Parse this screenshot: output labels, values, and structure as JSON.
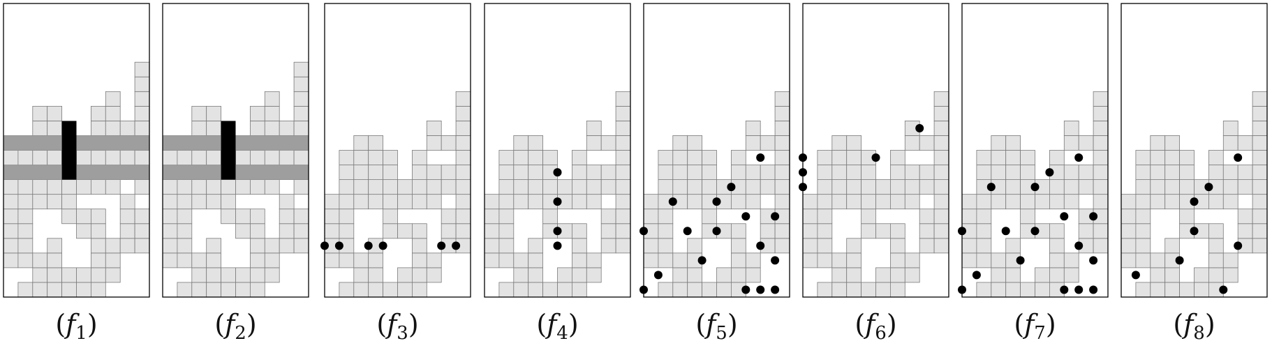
{
  "figure": {
    "grid": {
      "cols": 10,
      "rows": 20
    },
    "colors": {
      "cell": "#e3e3e3",
      "cell_line": "#7a7a7a",
      "frame": "#000000",
      "band": "#9e9e9e",
      "column_block": "#000000",
      "dot": "#000000"
    },
    "panels": [
      {
        "caption": {
          "open": "(",
          "letter": "f",
          "sub": "1",
          "close": ")"
        },
        "heights": [
          11,
          11,
          13,
          13,
          11,
          11,
          13,
          14,
          12,
          16
        ],
        "holes": [
          [
            0,
            0
          ],
          [
            0,
            1
          ],
          [
            1,
            1
          ],
          [
            2,
            3
          ],
          [
            2,
            4
          ],
          [
            2,
            5
          ],
          [
            3,
            4
          ],
          [
            3,
            5
          ],
          [
            4,
            2
          ],
          [
            4,
            3
          ],
          [
            4,
            4
          ],
          [
            5,
            2
          ],
          [
            5,
            3
          ],
          [
            5,
            6
          ],
          [
            6,
            6
          ],
          [
            7,
            0
          ],
          [
            7,
            4
          ],
          [
            7,
            5
          ],
          [
            7,
            6
          ],
          [
            7,
            10
          ],
          [
            8,
            0
          ],
          [
            8,
            1
          ],
          [
            8,
            2
          ],
          [
            8,
            7
          ],
          [
            8,
            10
          ],
          [
            9,
            0
          ],
          [
            9,
            1
          ],
          [
            9,
            2
          ],
          [
            9,
            6
          ],
          [
            9,
            8
          ]
        ],
        "bands": [
          [
            8,
            8
          ],
          [
            10,
            10
          ]
        ],
        "column_block": {
          "col": 4,
          "row_from": 8,
          "row_to": 11
        },
        "dots": []
      },
      {
        "caption": {
          "open": "(",
          "letter": "f",
          "sub": "2",
          "close": ")"
        },
        "heights": [
          11,
          11,
          13,
          13,
          11,
          11,
          13,
          14,
          12,
          16
        ],
        "holes": [
          [
            0,
            0
          ],
          [
            0,
            1
          ],
          [
            1,
            1
          ],
          [
            2,
            3
          ],
          [
            2,
            4
          ],
          [
            2,
            5
          ],
          [
            3,
            4
          ],
          [
            3,
            5
          ],
          [
            4,
            2
          ],
          [
            4,
            3
          ],
          [
            4,
            4
          ],
          [
            5,
            2
          ],
          [
            5,
            3
          ],
          [
            5,
            6
          ],
          [
            6,
            6
          ],
          [
            7,
            0
          ],
          [
            7,
            4
          ],
          [
            7,
            5
          ],
          [
            7,
            6
          ],
          [
            7,
            10
          ],
          [
            8,
            0
          ],
          [
            8,
            1
          ],
          [
            8,
            2
          ],
          [
            8,
            7
          ],
          [
            8,
            10
          ],
          [
            9,
            0
          ],
          [
            9,
            1
          ],
          [
            9,
            2
          ],
          [
            9,
            6
          ],
          [
            9,
            8
          ]
        ],
        "bands": [
          [
            8,
            8
          ],
          [
            10,
            10
          ]
        ],
        "column_block": {
          "col": 4,
          "row_from": 8,
          "row_to": 11
        },
        "dots": []
      },
      {
        "caption": {
          "open": "(",
          "letter": "f",
          "sub": "3",
          "close": ")"
        },
        "heights": [
          7,
          10,
          11,
          11,
          10,
          8,
          10,
          12,
          11,
          14
        ],
        "holes": [
          [
            0,
            0
          ],
          [
            0,
            1
          ],
          [
            1,
            1
          ],
          [
            2,
            3
          ],
          [
            2,
            4
          ],
          [
            2,
            5
          ],
          [
            3,
            4
          ],
          [
            3,
            5
          ],
          [
            4,
            1
          ],
          [
            4,
            2
          ],
          [
            4,
            3
          ],
          [
            5,
            2
          ],
          [
            5,
            3
          ],
          [
            5,
            5
          ],
          [
            6,
            5
          ],
          [
            7,
            0
          ],
          [
            7,
            3
          ],
          [
            7,
            4
          ],
          [
            7,
            5
          ],
          [
            7,
            9
          ],
          [
            8,
            0
          ],
          [
            8,
            1
          ],
          [
            8,
            2
          ],
          [
            8,
            6
          ],
          [
            8,
            9
          ],
          [
            9,
            0
          ],
          [
            9,
            1
          ],
          [
            9,
            2
          ]
        ],
        "bands": [],
        "column_block": null,
        "dots": [
          [
            0,
            3.5
          ],
          [
            1,
            3.5
          ],
          [
            3,
            3.5
          ],
          [
            4,
            3.5
          ],
          [
            8,
            3.5
          ],
          [
            9,
            3.5
          ]
        ]
      },
      {
        "caption": {
          "open": "(",
          "letter": "f",
          "sub": "4",
          "close": ")"
        },
        "heights": [
          7,
          10,
          11,
          11,
          10,
          8,
          10,
          12,
          11,
          14
        ],
        "holes": [
          [
            0,
            0
          ],
          [
            0,
            1
          ],
          [
            1,
            1
          ],
          [
            2,
            3
          ],
          [
            2,
            4
          ],
          [
            2,
            5
          ],
          [
            3,
            4
          ],
          [
            3,
            5
          ],
          [
            4,
            1
          ],
          [
            4,
            2
          ],
          [
            4,
            3
          ],
          [
            5,
            2
          ],
          [
            5,
            3
          ],
          [
            5,
            5
          ],
          [
            6,
            5
          ],
          [
            7,
            0
          ],
          [
            7,
            3
          ],
          [
            7,
            4
          ],
          [
            7,
            5
          ],
          [
            7,
            9
          ],
          [
            8,
            0
          ],
          [
            8,
            1
          ],
          [
            8,
            2
          ],
          [
            8,
            6
          ],
          [
            8,
            9
          ],
          [
            9,
            0
          ],
          [
            9,
            1
          ],
          [
            9,
            2
          ]
        ],
        "bands": [],
        "column_block": null,
        "dots": [
          [
            5,
            3.5
          ],
          [
            5,
            4.5
          ],
          [
            5,
            6.5
          ],
          [
            5,
            8.5
          ]
        ]
      },
      {
        "caption": {
          "open": "(",
          "letter": "f",
          "sub": "5",
          "close": ")"
        },
        "heights": [
          7,
          10,
          11,
          11,
          10,
          8,
          10,
          12,
          11,
          14
        ],
        "holes": [
          [
            0,
            0
          ],
          [
            0,
            1
          ],
          [
            1,
            1
          ],
          [
            2,
            3
          ],
          [
            2,
            4
          ],
          [
            2,
            5
          ],
          [
            3,
            4
          ],
          [
            3,
            5
          ],
          [
            4,
            1
          ],
          [
            4,
            2
          ],
          [
            4,
            3
          ],
          [
            5,
            2
          ],
          [
            5,
            3
          ],
          [
            5,
            5
          ],
          [
            6,
            5
          ],
          [
            7,
            0
          ],
          [
            7,
            3
          ],
          [
            7,
            4
          ],
          [
            7,
            5
          ],
          [
            7,
            9
          ],
          [
            8,
            0
          ],
          [
            8,
            1
          ],
          [
            8,
            2
          ],
          [
            8,
            6
          ],
          [
            8,
            9
          ],
          [
            9,
            0
          ],
          [
            9,
            1
          ],
          [
            9,
            2
          ]
        ],
        "bands": [],
        "column_block": null,
        "dots": [
          [
            0,
            0.5
          ],
          [
            0,
            4.5
          ],
          [
            1,
            1.5
          ],
          [
            2,
            6.5
          ],
          [
            3,
            4.5
          ],
          [
            4,
            2.5
          ],
          [
            5,
            4.5
          ],
          [
            5,
            6.5
          ],
          [
            6,
            7.5
          ],
          [
            7,
            0.5
          ],
          [
            7,
            5.5
          ],
          [
            8,
            0.5
          ],
          [
            8,
            3.5
          ],
          [
            8,
            9.5
          ],
          [
            9,
            0.5
          ],
          [
            9,
            2.5
          ],
          [
            9,
            5.5
          ]
        ]
      },
      {
        "caption": {
          "open": "(",
          "letter": "f",
          "sub": "6",
          "close": ")"
        },
        "heights": [
          7,
          10,
          11,
          11,
          10,
          8,
          10,
          12,
          11,
          14
        ],
        "holes": [
          [
            0,
            0
          ],
          [
            0,
            1
          ],
          [
            1,
            1
          ],
          [
            2,
            3
          ],
          [
            2,
            4
          ],
          [
            2,
            5
          ],
          [
            3,
            4
          ],
          [
            3,
            5
          ],
          [
            4,
            1
          ],
          [
            4,
            2
          ],
          [
            4,
            3
          ],
          [
            5,
            2
          ],
          [
            5,
            3
          ],
          [
            5,
            5
          ],
          [
            6,
            5
          ],
          [
            7,
            0
          ],
          [
            7,
            3
          ],
          [
            7,
            4
          ],
          [
            7,
            5
          ],
          [
            7,
            9
          ],
          [
            8,
            0
          ],
          [
            8,
            1
          ],
          [
            8,
            2
          ],
          [
            8,
            6
          ],
          [
            8,
            9
          ],
          [
            9,
            0
          ],
          [
            9,
            1
          ],
          [
            9,
            2
          ]
        ],
        "bands": [],
        "column_block": null,
        "dots": [
          [
            0,
            7.5
          ],
          [
            0,
            8.5
          ],
          [
            0,
            9.5
          ],
          [
            5,
            9.5
          ],
          [
            8,
            11.5
          ]
        ]
      },
      {
        "caption": {
          "open": "(",
          "letter": "f",
          "sub": "7",
          "close": ")"
        },
        "heights": [
          7,
          10,
          11,
          11,
          10,
          8,
          10,
          12,
          11,
          14
        ],
        "holes": [
          [
            0,
            0
          ],
          [
            0,
            1
          ],
          [
            1,
            1
          ],
          [
            2,
            3
          ],
          [
            2,
            4
          ],
          [
            2,
            5
          ],
          [
            3,
            4
          ],
          [
            3,
            5
          ],
          [
            4,
            1
          ],
          [
            4,
            2
          ],
          [
            4,
            3
          ],
          [
            5,
            2
          ],
          [
            5,
            3
          ],
          [
            5,
            5
          ],
          [
            6,
            5
          ],
          [
            7,
            0
          ],
          [
            7,
            3
          ],
          [
            7,
            4
          ],
          [
            7,
            5
          ],
          [
            7,
            9
          ],
          [
            8,
            0
          ],
          [
            8,
            1
          ],
          [
            8,
            2
          ],
          [
            8,
            6
          ],
          [
            8,
            9
          ],
          [
            9,
            0
          ],
          [
            9,
            1
          ],
          [
            9,
            2
          ]
        ],
        "bands": [],
        "column_block": null,
        "dots": [
          [
            0,
            0.5
          ],
          [
            0,
            4.5
          ],
          [
            1,
            1.5
          ],
          [
            2,
            7.5
          ],
          [
            3,
            4.5
          ],
          [
            4,
            2.5
          ],
          [
            5,
            4.5
          ],
          [
            5,
            7.5
          ],
          [
            6,
            8.5
          ],
          [
            7,
            0.5
          ],
          [
            7,
            5.5
          ],
          [
            8,
            0.5
          ],
          [
            8,
            3.5
          ],
          [
            8,
            9.5
          ],
          [
            9,
            0.5
          ],
          [
            9,
            2.5
          ],
          [
            9,
            5.5
          ]
        ]
      },
      {
        "caption": {
          "open": "(",
          "letter": "f",
          "sub": "8",
          "close": ")"
        },
        "heights": [
          7,
          10,
          11,
          11,
          10,
          8,
          10,
          12,
          11,
          14
        ],
        "holes": [
          [
            0,
            0
          ],
          [
            0,
            1
          ],
          [
            1,
            1
          ],
          [
            2,
            3
          ],
          [
            2,
            4
          ],
          [
            2,
            5
          ],
          [
            3,
            4
          ],
          [
            3,
            5
          ],
          [
            4,
            1
          ],
          [
            4,
            2
          ],
          [
            4,
            3
          ],
          [
            5,
            2
          ],
          [
            5,
            3
          ],
          [
            5,
            5
          ],
          [
            6,
            5
          ],
          [
            7,
            0
          ],
          [
            7,
            3
          ],
          [
            7,
            4
          ],
          [
            7,
            5
          ],
          [
            7,
            9
          ],
          [
            8,
            0
          ],
          [
            8,
            1
          ],
          [
            8,
            2
          ],
          [
            8,
            6
          ],
          [
            8,
            9
          ],
          [
            9,
            0
          ],
          [
            9,
            1
          ],
          [
            9,
            2
          ]
        ],
        "bands": [],
        "column_block": null,
        "dots": [
          [
            1,
            1.5
          ],
          [
            4,
            2.5
          ],
          [
            5,
            4.5
          ],
          [
            5,
            6.5
          ],
          [
            6,
            7.5
          ],
          [
            7,
            0.5
          ],
          [
            8,
            3.5
          ],
          [
            8,
            9.5
          ]
        ]
      }
    ]
  }
}
